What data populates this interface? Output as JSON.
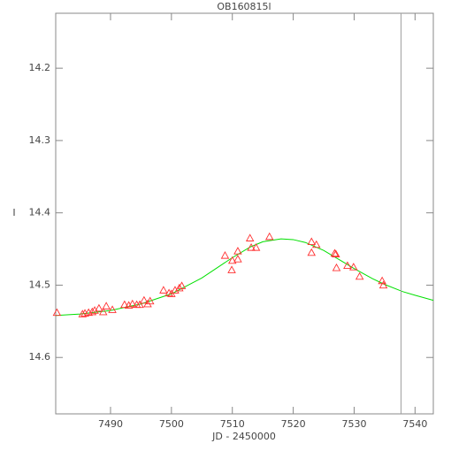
{
  "chart_data": {
    "type": "scatter",
    "title": "OB160815l",
    "x_label": "JD - 2450000",
    "y_label": "I",
    "xlim": [
      7481,
      7543
    ],
    "ylim": [
      14.678,
      14.124
    ],
    "xticks": [
      7490,
      7500,
      7510,
      7520,
      7530,
      7540
    ],
    "yticks": [
      14.2,
      14.3,
      14.4,
      14.5,
      14.6
    ],
    "points": {
      "color": "#ff3030",
      "x": [
        7481.2,
        7485.4,
        7485.8,
        7486.4,
        7487.0,
        7487.4,
        7488.1,
        7488.8,
        7489.3,
        7490.3,
        7492.3,
        7493.0,
        7493.6,
        7494.3,
        7494.8,
        7495.5,
        7496.1,
        7496.5,
        7498.7,
        7499.6,
        7500.0,
        7500.6,
        7501.3,
        7501.7,
        7508.8,
        7509.9,
        7510.0,
        7510.9,
        7510.9,
        7512.9,
        7513.1,
        7513.9,
        7516.1,
        7523.0,
        7523.0,
        7523.8,
        7526.8,
        7527.0,
        7527.1,
        7528.9,
        7529.9,
        7530.9,
        7534.6,
        7534.8
      ],
      "y": [
        14.538,
        14.54,
        14.539,
        14.538,
        14.537,
        14.535,
        14.532,
        14.537,
        14.529,
        14.534,
        14.527,
        14.528,
        14.526,
        14.527,
        14.527,
        14.521,
        14.526,
        14.522,
        14.507,
        14.511,
        14.512,
        14.507,
        14.504,
        14.501,
        14.459,
        14.479,
        14.466,
        14.464,
        14.453,
        14.435,
        14.448,
        14.448,
        14.433,
        14.44,
        14.455,
        14.444,
        14.456,
        14.457,
        14.476,
        14.473,
        14.475,
        14.488,
        14.494,
        14.5
      ]
    },
    "curve": {
      "color": "#00e000",
      "x": [
        7481,
        7485,
        7490,
        7495,
        7500,
        7505,
        7510,
        7513,
        7515,
        7518,
        7520,
        7522,
        7525,
        7528,
        7530,
        7533,
        7535,
        7538,
        7540,
        7543
      ],
      "y": [
        14.542,
        14.54,
        14.535,
        14.526,
        14.512,
        14.49,
        14.462,
        14.447,
        14.44,
        14.436,
        14.437,
        14.441,
        14.452,
        14.467,
        14.477,
        14.491,
        14.499,
        14.509,
        14.514,
        14.521
      ]
    },
    "vline": {
      "x": 7537.7,
      "color": "#a0a0a0"
    }
  }
}
